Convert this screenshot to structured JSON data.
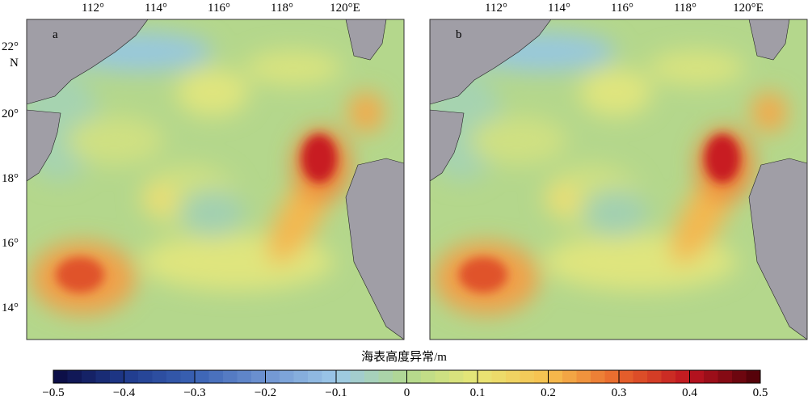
{
  "panels": [
    {
      "label": "a"
    },
    {
      "label": "b"
    }
  ],
  "longitude_labels": [
    "112°",
    "114°",
    "116°",
    "118°",
    "120°E"
  ],
  "latitude_labels": [
    "22°",
    "N",
    "20°",
    "18°",
    "16°",
    "14°"
  ],
  "colorbar": {
    "title": "海表高度异常/m",
    "ticks": [
      {
        "value": -0.5,
        "label": "−0.5"
      },
      {
        "value": -0.4,
        "label": "−0.4"
      },
      {
        "value": -0.3,
        "label": "−0.3"
      },
      {
        "value": -0.2,
        "label": "−0.2"
      },
      {
        "value": -0.1,
        "label": "−0.1"
      },
      0,
      0.1,
      0.2,
      0.3,
      0.4,
      0.5
    ],
    "colors": [
      "#0b0a40",
      "#1f3a8c",
      "#3a62b4",
      "#6f94d2",
      "#9cc8e8",
      "#b2d98e",
      "#e8e676",
      "#f7c04e",
      "#e8652c",
      "#bf1420",
      "#4a0008"
    ]
  }
}
